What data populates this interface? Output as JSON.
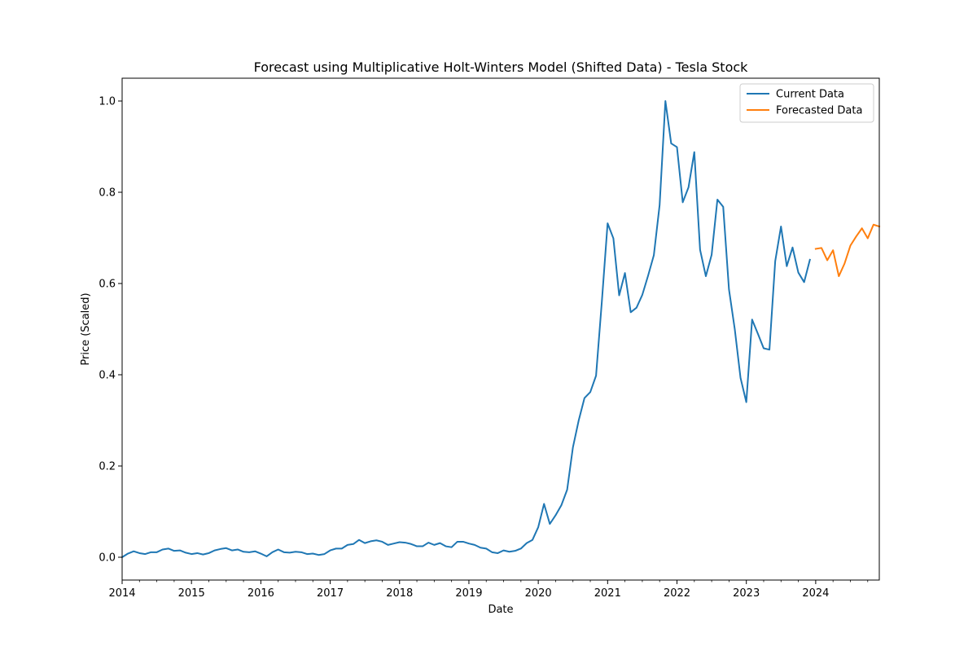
{
  "chart_data": {
    "type": "line",
    "title": "Forecast using Multiplicative Holt-Winters Model (Shifted Data) - Tesla Stock",
    "xlabel": "Date",
    "ylabel": "Price (Scaled)",
    "xlim": [
      2014.0,
      2024.917
    ],
    "ylim": [
      -0.05,
      1.05
    ],
    "x_ticks": [
      2014,
      2015,
      2016,
      2017,
      2018,
      2019,
      2020,
      2021,
      2022,
      2023,
      2024
    ],
    "x_tick_labels": [
      "2014",
      "2015",
      "2016",
      "2017",
      "2018",
      "2019",
      "2020",
      "2021",
      "2022",
      "2023",
      "2024"
    ],
    "y_ticks": [
      0.0,
      0.2,
      0.4,
      0.6,
      0.8,
      1.0
    ],
    "y_tick_labels": [
      "0.0",
      "0.2",
      "0.4",
      "0.6",
      "0.8",
      "1.0"
    ],
    "legend_position": "top-right",
    "series": [
      {
        "name": "Current Data",
        "color": "#1f77b4",
        "start": 2014.0,
        "step": 0.08333,
        "values": [
          0.0,
          0.008,
          0.013,
          0.009,
          0.007,
          0.011,
          0.011,
          0.017,
          0.019,
          0.014,
          0.015,
          0.01,
          0.007,
          0.009,
          0.006,
          0.009,
          0.015,
          0.018,
          0.02,
          0.015,
          0.017,
          0.012,
          0.011,
          0.013,
          0.008,
          0.002,
          0.011,
          0.017,
          0.011,
          0.01,
          0.012,
          0.011,
          0.007,
          0.008,
          0.005,
          0.007,
          0.015,
          0.019,
          0.019,
          0.027,
          0.029,
          0.038,
          0.031,
          0.035,
          0.037,
          0.034,
          0.027,
          0.03,
          0.033,
          0.032,
          0.029,
          0.024,
          0.024,
          0.032,
          0.027,
          0.031,
          0.024,
          0.022,
          0.034,
          0.034,
          0.03,
          0.027,
          0.021,
          0.019,
          0.011,
          0.009,
          0.015,
          0.012,
          0.014,
          0.019,
          0.031,
          0.038,
          0.066,
          0.117,
          0.073,
          0.092,
          0.114,
          0.148,
          0.241,
          0.3,
          0.349,
          0.362,
          0.398,
          0.56,
          0.732,
          0.699,
          0.574,
          0.623,
          0.537,
          0.547,
          0.575,
          0.617,
          0.662,
          0.772,
          1.0,
          0.907,
          0.899,
          0.778,
          0.811,
          0.888,
          0.674,
          0.616,
          0.663,
          0.784,
          0.768,
          0.587,
          0.5,
          0.393,
          0.34,
          0.521,
          0.49,
          0.458,
          0.455,
          0.649,
          0.725,
          0.638,
          0.679,
          0.624,
          0.603,
          0.652
        ]
      },
      {
        "name": "Forecasted Data",
        "color": "#ff7f0e",
        "start": 2024.0,
        "step": 0.08333,
        "values": [
          0.676,
          0.678,
          0.651,
          0.673,
          0.616,
          0.644,
          0.683,
          0.703,
          0.721,
          0.699,
          0.729,
          0.725
        ]
      }
    ]
  }
}
